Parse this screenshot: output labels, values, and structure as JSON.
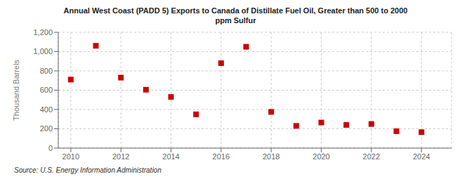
{
  "chart_data": {
    "type": "scatter",
    "title": "Annual West Coast (PADD 5) Exports to Canada of Distillate Fuel Oil, Greater than 500 to 2000\nppm Sulfur",
    "ylabel": "Thousand Barrels",
    "annotations": [
      "Source: U.S. Energy Information Administration"
    ],
    "x": [
      2010,
      2011,
      2012,
      2013,
      2014,
      2015,
      2016,
      2017,
      2018,
      2019,
      2020,
      2021,
      2022,
      2023,
      2024
    ],
    "values": [
      710,
      1060,
      730,
      605,
      530,
      350,
      880,
      1050,
      375,
      230,
      265,
      240,
      250,
      175,
      165
    ],
    "color": "#cc0000",
    "marker": "square",
    "grid": true,
    "xlim": [
      2009.5,
      2025.2
    ],
    "xticks": [
      2010,
      2012,
      2014,
      2016,
      2018,
      2020,
      2022,
      2024
    ],
    "ylim": [
      0,
      1200
    ],
    "yticks": [
      0,
      200,
      400,
      600,
      {
        "value": 800,
        "label": "800"
      },
      {
        "value": 1000,
        "label": "1,000"
      },
      {
        "value": 1200,
        "label": "1,200"
      }
    ]
  }
}
